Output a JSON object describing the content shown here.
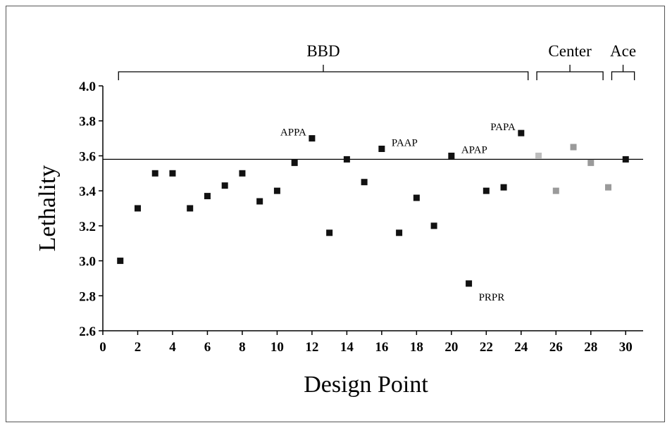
{
  "chart_data": {
    "type": "scatter",
    "xlabel": "Design Point",
    "ylabel": "Lethality",
    "xlim": [
      0,
      31
    ],
    "ylim": [
      2.6,
      4.0
    ],
    "xticks": [
      "0",
      "2",
      "4",
      "6",
      "8",
      "10",
      "12",
      "14",
      "16",
      "18",
      "20",
      "22",
      "24",
      "26",
      "28",
      "30"
    ],
    "yticks": [
      "2.6",
      "2.8",
      "3.0",
      "3.2",
      "3.4",
      "3.6",
      "3.8",
      "4.0"
    ],
    "reference_line": 3.58,
    "marker_colors": {
      "black": "#111111",
      "light": "#bdbdbd",
      "medium": "#9a9a9a"
    },
    "points": [
      {
        "x": 1,
        "y": 3.0,
        "color": "black"
      },
      {
        "x": 2,
        "y": 3.3,
        "color": "black"
      },
      {
        "x": 3,
        "y": 3.5,
        "color": "black"
      },
      {
        "x": 4,
        "y": 3.5,
        "color": "black"
      },
      {
        "x": 5,
        "y": 3.3,
        "color": "black"
      },
      {
        "x": 6,
        "y": 3.37,
        "color": "black"
      },
      {
        "x": 7,
        "y": 3.43,
        "color": "black"
      },
      {
        "x": 8,
        "y": 3.5,
        "color": "black"
      },
      {
        "x": 9,
        "y": 3.34,
        "color": "black"
      },
      {
        "x": 10,
        "y": 3.4,
        "color": "black"
      },
      {
        "x": 11,
        "y": 3.56,
        "color": "black"
      },
      {
        "x": 12,
        "y": 3.7,
        "color": "black"
      },
      {
        "x": 13,
        "y": 3.16,
        "color": "black"
      },
      {
        "x": 14,
        "y": 3.58,
        "color": "black"
      },
      {
        "x": 15,
        "y": 3.45,
        "color": "black"
      },
      {
        "x": 16,
        "y": 3.64,
        "color": "black"
      },
      {
        "x": 17,
        "y": 3.16,
        "color": "black"
      },
      {
        "x": 18,
        "y": 3.36,
        "color": "black"
      },
      {
        "x": 19,
        "y": 3.2,
        "color": "black"
      },
      {
        "x": 20,
        "y": 3.6,
        "color": "black"
      },
      {
        "x": 21,
        "y": 2.87,
        "color": "black"
      },
      {
        "x": 22,
        "y": 3.4,
        "color": "black"
      },
      {
        "x": 23,
        "y": 3.42,
        "color": "black"
      },
      {
        "x": 24,
        "y": 3.73,
        "color": "black"
      },
      {
        "x": 25,
        "y": 3.6,
        "color": "light"
      },
      {
        "x": 26,
        "y": 3.4,
        "color": "medium"
      },
      {
        "x": 27,
        "y": 3.65,
        "color": "medium"
      },
      {
        "x": 28,
        "y": 3.56,
        "color": "medium"
      },
      {
        "x": 29,
        "y": 3.42,
        "color": "medium"
      },
      {
        "x": 30,
        "y": 3.58,
        "color": "black"
      }
    ],
    "annotations": [
      {
        "text": "APPA",
        "x": 12,
        "y": 3.7,
        "anchor": "left"
      },
      {
        "text": "PAAP",
        "x": 16,
        "y": 3.64,
        "anchor": "right"
      },
      {
        "text": "APAP",
        "x": 20,
        "y": 3.6,
        "anchor": "right"
      },
      {
        "text": "PAPA",
        "x": 24,
        "y": 3.73,
        "anchor": "left"
      },
      {
        "text": "PRPR",
        "x": 21,
        "y": 2.87,
        "anchor": "below-right"
      }
    ],
    "groups": [
      {
        "label": "BBD",
        "x_start": 0.9,
        "x_end": 24.4
      },
      {
        "label": "Center",
        "x_start": 24.9,
        "x_end": 28.7
      },
      {
        "label": "Ace",
        "x_start": 29.2,
        "x_end": 30.5
      }
    ]
  }
}
